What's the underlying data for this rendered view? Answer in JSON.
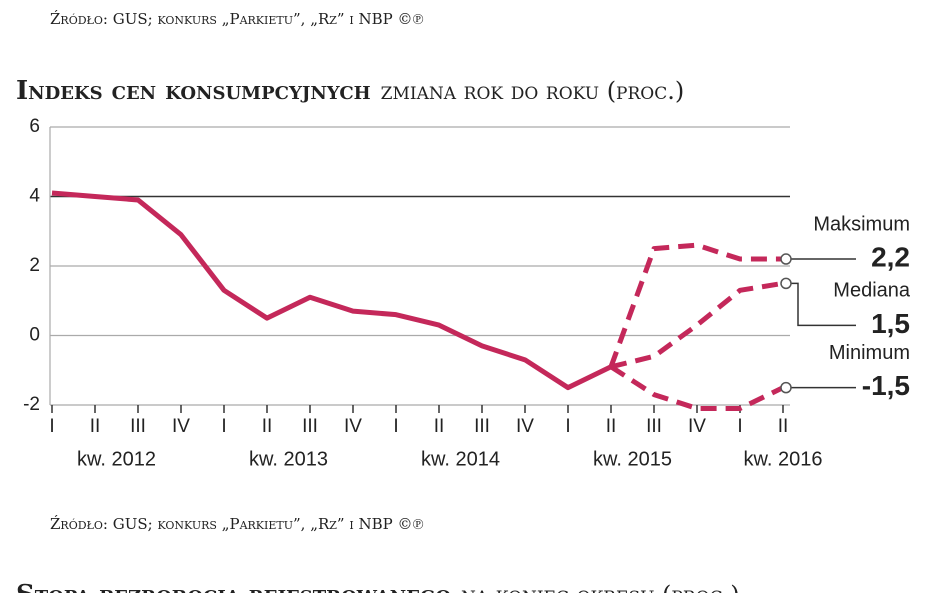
{
  "source_top": "Źródło: GUS; konkurs „Parkietu”, „Rz” i NBP ©℗",
  "chart_data": {
    "type": "line",
    "title": "Indeks cen konsumpcyjnych",
    "subtitle": "zmiana rok do roku (proc.)",
    "categories": [
      "I",
      "II",
      "III",
      "IV",
      "I",
      "II",
      "III",
      "IV",
      "I",
      "II",
      "III",
      "IV",
      "I",
      "II",
      "III",
      "IV",
      "I",
      "II"
    ],
    "year_labels": [
      "kw. 2012",
      "kw. 2013",
      "kw. 2014",
      "kw. 2015",
      "kw. 2016"
    ],
    "ylim": [
      -2,
      6
    ],
    "yticks": [
      -2,
      0,
      2,
      4,
      6
    ],
    "grid": true,
    "series": [
      {
        "color": "#c4285a",
        "style": "solid",
        "values": [
          4.1,
          4.0,
          3.9,
          2.9,
          1.3,
          0.5,
          1.1,
          0.7,
          0.6,
          0.3,
          -0.3,
          -0.7,
          -1.5,
          -0.9,
          null,
          null,
          null,
          null
        ]
      },
      {
        "name": "Maksimum",
        "color": "#c4285a",
        "style": "dashed",
        "values": [
          null,
          null,
          null,
          null,
          null,
          null,
          null,
          null,
          null,
          null,
          null,
          null,
          null,
          -0.9,
          2.5,
          2.6,
          2.2,
          2.2
        ],
        "value_labels": [
          null,
          null,
          null,
          null,
          null,
          null,
          null,
          null,
          null,
          null,
          null,
          null,
          null,
          null,
          null,
          null,
          null,
          "2,2"
        ]
      },
      {
        "name": "Mediana",
        "color": "#c4285a",
        "style": "dashed",
        "values": [
          null,
          null,
          null,
          null,
          null,
          null,
          null,
          null,
          null,
          null,
          null,
          null,
          null,
          -0.9,
          -0.6,
          0.3,
          1.3,
          1.5
        ],
        "value_labels": [
          null,
          null,
          null,
          null,
          null,
          null,
          null,
          null,
          null,
          null,
          null,
          null,
          null,
          null,
          null,
          null,
          null,
          "1,5"
        ]
      },
      {
        "name": "Minimum",
        "color": "#c4285a",
        "style": "dashed",
        "values": [
          null,
          null,
          null,
          null,
          null,
          null,
          null,
          null,
          null,
          null,
          null,
          null,
          null,
          -0.9,
          -1.7,
          -2.1,
          -2.1,
          -1.5
        ],
        "value_labels": [
          null,
          null,
          null,
          null,
          null,
          null,
          null,
          null,
          null,
          null,
          null,
          null,
          null,
          null,
          null,
          null,
          null,
          "-1,5"
        ]
      }
    ],
    "source": "Źródło: GUS; konkurs „Parkietu”, „Rz” i NBP ©℗"
  },
  "next_title": "Stopa bezrobocia rejestrowanego",
  "next_subtitle": "na koniec okresu (proc.)"
}
